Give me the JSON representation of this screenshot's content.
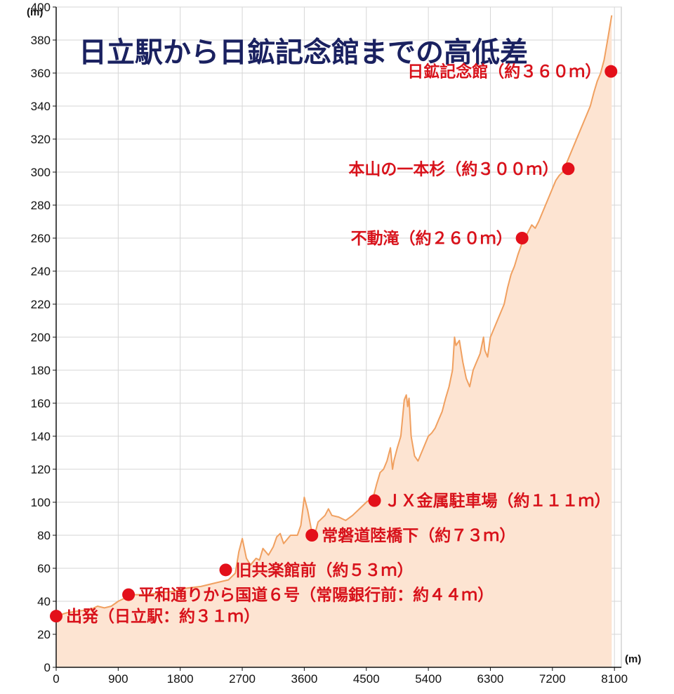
{
  "chart_data": {
    "type": "area",
    "title": "日立駅から日鉱記念館までの高低差",
    "xlabel": "",
    "ylabel": "",
    "x_unit": "(m)",
    "y_unit": "(m)",
    "xlim": [
      0,
      8200
    ],
    "ylim": [
      0,
      400
    ],
    "x_ticks": [
      0,
      900,
      1800,
      2700,
      3600,
      4500,
      5400,
      6300,
      7200,
      8100
    ],
    "y_ticks": [
      0,
      20,
      40,
      60,
      80,
      100,
      120,
      140,
      160,
      180,
      200,
      220,
      240,
      260,
      280,
      300,
      320,
      340,
      360,
      380,
      400
    ],
    "grid": true,
    "colors": {
      "line": "#f0a060",
      "fill": "#fde4d2",
      "marker": "#e3101a",
      "title": "#1a2160",
      "annotation": "#d8121b"
    },
    "profile": [
      [
        0,
        31
      ],
      [
        150,
        33
      ],
      [
        300,
        34
      ],
      [
        500,
        35
      ],
      [
        600,
        37
      ],
      [
        700,
        36
      ],
      [
        800,
        37
      ],
      [
        900,
        40
      ],
      [
        1000,
        42
      ],
      [
        1100,
        44
      ],
      [
        1300,
        44
      ],
      [
        1500,
        45
      ],
      [
        1700,
        46
      ],
      [
        1900,
        48
      ],
      [
        2100,
        49
      ],
      [
        2300,
        51
      ],
      [
        2500,
        53
      ],
      [
        2600,
        57
      ],
      [
        2650,
        70
      ],
      [
        2700,
        78
      ],
      [
        2760,
        66
      ],
      [
        2820,
        62
      ],
      [
        2900,
        66
      ],
      [
        2950,
        65
      ],
      [
        3000,
        72
      ],
      [
        3080,
        68
      ],
      [
        3150,
        73
      ],
      [
        3200,
        79
      ],
      [
        3250,
        81
      ],
      [
        3300,
        75
      ],
      [
        3400,
        80
      ],
      [
        3500,
        80
      ],
      [
        3550,
        86
      ],
      [
        3600,
        103
      ],
      [
        3650,
        95
      ],
      [
        3700,
        84
      ],
      [
        3750,
        80
      ],
      [
        3800,
        88
      ],
      [
        3900,
        92
      ],
      [
        3950,
        96
      ],
      [
        4000,
        92
      ],
      [
        4100,
        91
      ],
      [
        4200,
        89
      ],
      [
        4300,
        92
      ],
      [
        4400,
        96
      ],
      [
        4500,
        100
      ],
      [
        4600,
        103
      ],
      [
        4650,
        111
      ],
      [
        4700,
        118
      ],
      [
        4750,
        120
      ],
      [
        4800,
        125
      ],
      [
        4850,
        133
      ],
      [
        4880,
        120
      ],
      [
        4900,
        125
      ],
      [
        4950,
        133
      ],
      [
        5000,
        140
      ],
      [
        5050,
        162
      ],
      [
        5080,
        165
      ],
      [
        5100,
        158
      ],
      [
        5120,
        163
      ],
      [
        5150,
        140
      ],
      [
        5200,
        128
      ],
      [
        5250,
        125
      ],
      [
        5300,
        130
      ],
      [
        5350,
        135
      ],
      [
        5400,
        140
      ],
      [
        5450,
        142
      ],
      [
        5500,
        145
      ],
      [
        5550,
        150
      ],
      [
        5600,
        155
      ],
      [
        5650,
        163
      ],
      [
        5700,
        170
      ],
      [
        5750,
        180
      ],
      [
        5780,
        200
      ],
      [
        5800,
        195
      ],
      [
        5850,
        198
      ],
      [
        5900,
        185
      ],
      [
        5950,
        175
      ],
      [
        6000,
        170
      ],
      [
        6050,
        180
      ],
      [
        6100,
        185
      ],
      [
        6150,
        190
      ],
      [
        6200,
        200
      ],
      [
        6220,
        192
      ],
      [
        6260,
        188
      ],
      [
        6300,
        200
      ],
      [
        6350,
        205
      ],
      [
        6400,
        210
      ],
      [
        6450,
        215
      ],
      [
        6500,
        220
      ],
      [
        6550,
        230
      ],
      [
        6600,
        238
      ],
      [
        6650,
        243
      ],
      [
        6700,
        250
      ],
      [
        6750,
        256
      ],
      [
        6800,
        260
      ],
      [
        6850,
        264
      ],
      [
        6900,
        268
      ],
      [
        6950,
        266
      ],
      [
        7000,
        270
      ],
      [
        7050,
        275
      ],
      [
        7100,
        280
      ],
      [
        7150,
        285
      ],
      [
        7200,
        290
      ],
      [
        7250,
        295
      ],
      [
        7300,
        298
      ],
      [
        7350,
        300
      ],
      [
        7400,
        305
      ],
      [
        7450,
        310
      ],
      [
        7500,
        315
      ],
      [
        7550,
        320
      ],
      [
        7600,
        325
      ],
      [
        7650,
        330
      ],
      [
        7700,
        335
      ],
      [
        7750,
        340
      ],
      [
        7800,
        348
      ],
      [
        7850,
        355
      ],
      [
        7900,
        360
      ],
      [
        7950,
        368
      ],
      [
        8000,
        380
      ],
      [
        8060,
        395
      ]
    ],
    "points": [
      {
        "label": "出発（日立駅：約３１ｍ）",
        "x": 0,
        "y": 31,
        "label_side": "right"
      },
      {
        "label": "平和通りから国道６号（常陽銀行前：約４４ｍ）",
        "x": 1050,
        "y": 44,
        "label_side": "right"
      },
      {
        "label": "旧共楽館前（約５３ｍ）",
        "x": 2460,
        "y": 59,
        "label_side": "right"
      },
      {
        "label": "常磐道陸橋下（約７３ｍ）",
        "x": 3710,
        "y": 80,
        "label_side": "right"
      },
      {
        "label": "ＪＸ金属駐車場（約１１１ｍ）",
        "x": 4620,
        "y": 101,
        "label_side": "right"
      },
      {
        "label": "不動滝（約２６０ｍ）",
        "x": 6760,
        "y": 260,
        "label_side": "left"
      },
      {
        "label": "本山の一本杉（約３００ｍ）",
        "x": 7430,
        "y": 302,
        "label_side": "left"
      },
      {
        "label": "日鉱記念館（約３６０ｍ）",
        "x": 8050,
        "y": 361,
        "label_side": "left"
      }
    ]
  }
}
